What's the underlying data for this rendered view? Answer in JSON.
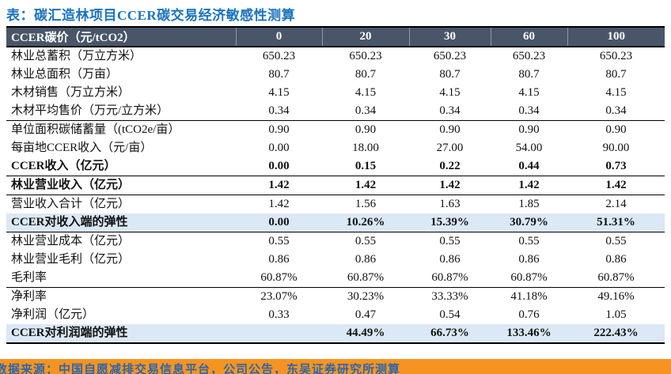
{
  "title": "表：碳汇造林项目CCER碳交易经济敏感性测算",
  "table": {
    "header": {
      "label": "CCER碳价（元/tCO2）",
      "columns": [
        "0",
        "20",
        "30",
        "60",
        "100"
      ]
    },
    "rows": [
      {
        "label": "林业总蓄积（万立方米）",
        "values": [
          "650.23",
          "650.23",
          "650.23",
          "650.23",
          "650.23"
        ],
        "bold": false,
        "highlight": false,
        "rule_below": false
      },
      {
        "label": "林业总面积（万亩）",
        "values": [
          "80.7",
          "80.7",
          "80.7",
          "80.7",
          "80.7"
        ],
        "bold": false,
        "highlight": false,
        "rule_below": false
      },
      {
        "label": "木材销售（万立方米）",
        "values": [
          "4.15",
          "4.15",
          "4.15",
          "4.15",
          "4.15"
        ],
        "bold": false,
        "highlight": false,
        "rule_below": false
      },
      {
        "label": "木材平均售价（万元/立方米）",
        "values": [
          "0.34",
          "0.34",
          "0.34",
          "0.34",
          "0.34"
        ],
        "bold": false,
        "highlight": false,
        "rule_below": true
      },
      {
        "label": "单位面积碳储蓄量（(tCO2e/亩）",
        "values": [
          "0.90",
          "0.90",
          "0.90",
          "0.90",
          "0.90"
        ],
        "bold": false,
        "highlight": false,
        "rule_below": false
      },
      {
        "label": "每亩地CCER收入（元/亩）",
        "values": [
          "0.00",
          "18.00",
          "27.00",
          "54.00",
          "90.00"
        ],
        "bold": false,
        "highlight": false,
        "rule_below": false
      },
      {
        "label": "CCER收入（亿元）",
        "values": [
          "0.00",
          "0.15",
          "0.22",
          "0.44",
          "0.73"
        ],
        "bold": true,
        "highlight": false,
        "rule_below": true
      },
      {
        "label": "林业营业收入（亿元）",
        "values": [
          "1.42",
          "1.42",
          "1.42",
          "1.42",
          "1.42"
        ],
        "bold": true,
        "highlight": false,
        "rule_below": true
      },
      {
        "label": "营业收入合计（亿元）",
        "values": [
          "1.42",
          "1.56",
          "1.63",
          "1.85",
          "2.14"
        ],
        "bold": false,
        "highlight": false,
        "rule_below": false
      },
      {
        "label": "CCER对收入端的弹性",
        "values": [
          "0.00",
          "10.26%",
          "15.39%",
          "30.79%",
          "51.31%"
        ],
        "bold": true,
        "highlight": true,
        "rule_below": true
      },
      {
        "label": "林业营业成本（亿元）",
        "values": [
          "0.55",
          "0.55",
          "0.55",
          "0.55",
          "0.55"
        ],
        "bold": false,
        "highlight": false,
        "rule_below": false
      },
      {
        "label": "林业营业毛利（亿元）",
        "values": [
          "0.86",
          "0.86",
          "0.86",
          "0.86",
          "0.86"
        ],
        "bold": false,
        "highlight": false,
        "rule_below": false
      },
      {
        "label": "毛利率",
        "values": [
          "60.87%",
          "60.87%",
          "60.87%",
          "60.87%",
          "60.87%"
        ],
        "bold": false,
        "highlight": false,
        "rule_below": true
      },
      {
        "label": "净利率",
        "values": [
          "23.07%",
          "30.23%",
          "33.33%",
          "41.18%",
          "49.16%"
        ],
        "bold": false,
        "highlight": false,
        "rule_below": false
      },
      {
        "label": "净利润（亿元）",
        "values": [
          "0.33",
          "0.47",
          "0.54",
          "0.76",
          "1.05"
        ],
        "bold": false,
        "highlight": false,
        "rule_below": false
      },
      {
        "label": "CCER对利润端的弹性",
        "values": [
          "",
          "44.49%",
          "66.73%",
          "133.46%",
          "222.43%"
        ],
        "bold": true,
        "highlight": true,
        "rule_below": false
      }
    ]
  },
  "footer": {
    "source": "数据来源：中国自愿减排交易信息平台，公司公告，东吴证券研究所测算"
  },
  "colors": {
    "title_blue": "#1a73c0",
    "header_bg": "#495669",
    "header_sep": "#8e99ab",
    "highlight_bg": "#dbe8f5",
    "source_bg": "#f79421",
    "source_text": "#2b66ae"
  }
}
